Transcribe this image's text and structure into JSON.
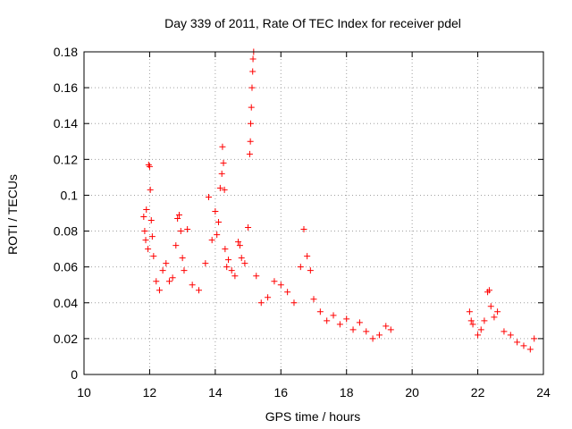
{
  "chart_data": {
    "type": "scatter",
    "title": "Day 339 of 2011, Rate Of TEC Index for receiver pdel",
    "xlabel": "GPS time / hours",
    "ylabel": "ROTI / TECUs",
    "xlim": [
      10,
      24
    ],
    "ylim": [
      0,
      0.18
    ],
    "x_ticks": [
      10,
      12,
      14,
      16,
      18,
      20,
      22,
      24
    ],
    "y_ticks": [
      0,
      0.02,
      0.04,
      0.06,
      0.08,
      0.1,
      0.12,
      0.14,
      0.16,
      0.18
    ],
    "grid": true,
    "marker": "+",
    "marker_color": "#ff0000",
    "series": [
      {
        "name": "ROTI",
        "points": [
          [
            11.82,
            0.088
          ],
          [
            11.85,
            0.08
          ],
          [
            11.88,
            0.075
          ],
          [
            11.9,
            0.092
          ],
          [
            11.95,
            0.07
          ],
          [
            11.97,
            0.117
          ],
          [
            12.0,
            0.116
          ],
          [
            12.02,
            0.103
          ],
          [
            12.05,
            0.086
          ],
          [
            12.08,
            0.077
          ],
          [
            12.12,
            0.066
          ],
          [
            12.2,
            0.052
          ],
          [
            12.3,
            0.047
          ],
          [
            12.4,
            0.058
          ],
          [
            12.5,
            0.062
          ],
          [
            12.6,
            0.052
          ],
          [
            12.7,
            0.054
          ],
          [
            12.8,
            0.072
          ],
          [
            12.85,
            0.087
          ],
          [
            12.9,
            0.089
          ],
          [
            12.95,
            0.08
          ],
          [
            13.0,
            0.065
          ],
          [
            13.05,
            0.058
          ],
          [
            13.15,
            0.081
          ],
          [
            13.3,
            0.05
          ],
          [
            13.5,
            0.047
          ],
          [
            13.7,
            0.062
          ],
          [
            13.8,
            0.099
          ],
          [
            13.9,
            0.075
          ],
          [
            14.0,
            0.091
          ],
          [
            14.05,
            0.078
          ],
          [
            14.1,
            0.085
          ],
          [
            14.15,
            0.104
          ],
          [
            14.2,
            0.112
          ],
          [
            14.22,
            0.127
          ],
          [
            14.25,
            0.118
          ],
          [
            14.28,
            0.103
          ],
          [
            14.3,
            0.07
          ],
          [
            14.35,
            0.06
          ],
          [
            14.4,
            0.064
          ],
          [
            14.5,
            0.058
          ],
          [
            14.6,
            0.055
          ],
          [
            14.7,
            0.074
          ],
          [
            14.75,
            0.072
          ],
          [
            14.8,
            0.065
          ],
          [
            14.9,
            0.062
          ],
          [
            15.0,
            0.082
          ],
          [
            15.05,
            0.123
          ],
          [
            15.07,
            0.13
          ],
          [
            15.08,
            0.14
          ],
          [
            15.1,
            0.149
          ],
          [
            15.12,
            0.16
          ],
          [
            15.14,
            0.169
          ],
          [
            15.15,
            0.176
          ],
          [
            15.17,
            0.18
          ],
          [
            15.25,
            0.055
          ],
          [
            15.4,
            0.04
          ],
          [
            15.6,
            0.043
          ],
          [
            15.8,
            0.052
          ],
          [
            16.0,
            0.05
          ],
          [
            16.2,
            0.046
          ],
          [
            16.4,
            0.04
          ],
          [
            16.6,
            0.06
          ],
          [
            16.7,
            0.081
          ],
          [
            16.8,
            0.066
          ],
          [
            16.9,
            0.058
          ],
          [
            17.0,
            0.042
          ],
          [
            17.2,
            0.035
          ],
          [
            17.4,
            0.03
          ],
          [
            17.6,
            0.033
          ],
          [
            17.8,
            0.028
          ],
          [
            18.0,
            0.031
          ],
          [
            18.2,
            0.025
          ],
          [
            18.4,
            0.029
          ],
          [
            18.6,
            0.024
          ],
          [
            18.8,
            0.02
          ],
          [
            19.0,
            0.022
          ],
          [
            19.2,
            0.027
          ],
          [
            19.35,
            0.025
          ],
          [
            21.75,
            0.035
          ],
          [
            21.8,
            0.03
          ],
          [
            21.85,
            0.028
          ],
          [
            22.0,
            0.022
          ],
          [
            22.1,
            0.025
          ],
          [
            22.2,
            0.03
          ],
          [
            22.3,
            0.046
          ],
          [
            22.35,
            0.047
          ],
          [
            22.4,
            0.038
          ],
          [
            22.5,
            0.032
          ],
          [
            22.6,
            0.035
          ],
          [
            22.8,
            0.024
          ],
          [
            23.0,
            0.022
          ],
          [
            23.2,
            0.018
          ],
          [
            23.4,
            0.016
          ],
          [
            23.6,
            0.014
          ],
          [
            23.72,
            0.02
          ]
        ]
      }
    ]
  }
}
